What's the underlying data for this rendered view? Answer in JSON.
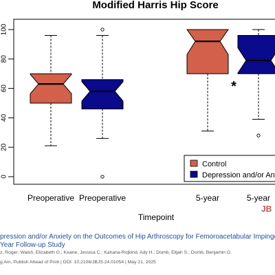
{
  "chart_data": {
    "type": "boxplot",
    "title": "Modified Harris Hip Score",
    "xlabel": "Timepoint",
    "ylabel": "",
    "ylim": [
      0,
      100
    ],
    "yticks": [
      0,
      20,
      40,
      60,
      80,
      100
    ],
    "ytick_labels": [
      "0",
      "20",
      "40",
      "60",
      "80",
      "100"
    ],
    "categories": [
      "Preoperative",
      "Preoperative",
      "5-year",
      "5-year"
    ],
    "legend": [
      "Control",
      "Depression and/or Anxiety"
    ],
    "legend_position": "bottom-right",
    "colors": {
      "control": "#d2604a",
      "depression": "#0a0a8c"
    },
    "annotation": "*",
    "boxes": [
      {
        "group": "Control",
        "category": "Preoperative",
        "min": 21,
        "q1": 50,
        "median": 63,
        "q3": 70,
        "max": 96,
        "outliers": []
      },
      {
        "group": "Depression and/or Anxiety",
        "category": "Preoperative",
        "min": 26,
        "q1": 46,
        "median": 58,
        "q3": 66,
        "max": 96,
        "outliers": [
          100,
          0
        ]
      },
      {
        "group": "Control",
        "category": "5-year",
        "min": 31,
        "q1": 70,
        "median": 92,
        "q3": 100,
        "max": 100,
        "outliers": []
      },
      {
        "group": "Depression and/or Anxiety",
        "category": "5-year",
        "min": 39,
        "q1": 70,
        "median": 79,
        "q3": 96,
        "max": 100,
        "outliers": [
          28
        ]
      }
    ]
  },
  "logo_text": "JB",
  "caption": {
    "title": "pression and/or Anxiety on the Outcomes of Hip Arthroscopy for Femoroacetabular Impingement and Labra",
    "title2": "Year Follow-up Study",
    "authors": "z, Roger; Walsh, Elizabeth G.; Keane, Jessica C.; Kahana-Rojkind, Ady H.; Domb, Elijah S.; Domb, Benjamin G.",
    "journal": "g Am, Publish Ahead of Print | DOI: 10.2106/JBJS.24.01054 | May 21, 2025"
  }
}
